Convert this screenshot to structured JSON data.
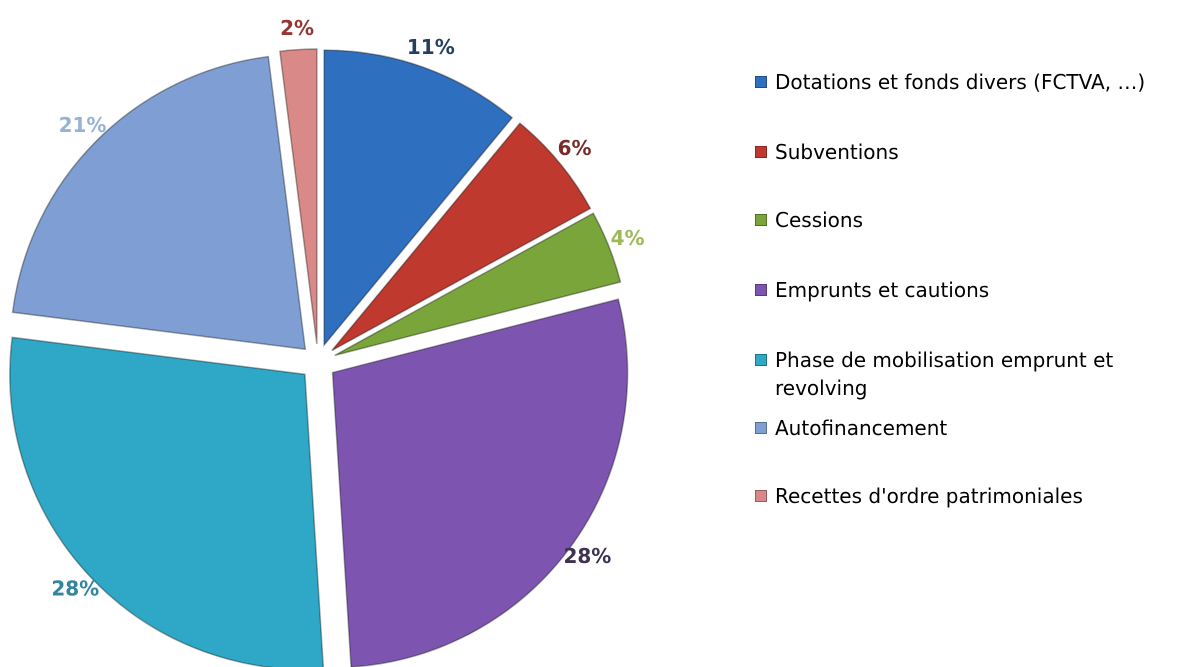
{
  "chart_data": {
    "type": "pie",
    "categories": [
      "Dotations et fonds divers (FCTVA, …)",
      "Subventions",
      "Cessions",
      "Emprunts et cautions",
      "Phase de mobilisation emprunt et revolving",
      "Autofinancement",
      "Recettes d'ordre patrimoniales"
    ],
    "values": [
      11,
      6,
      4,
      28,
      28,
      21,
      2
    ],
    "value_labels": [
      "11%",
      "6%",
      "4%",
      "28%",
      "28%",
      "21%",
      "2%"
    ],
    "colors": [
      "#2f6fbf",
      "#c0392f",
      "#7aa53a",
      "#7d55b0",
      "#2ea8c6",
      "#7f9fd4",
      "#d98a88"
    ],
    "label_colors": [
      "#243f60",
      "#772c2a",
      "#9bbb59",
      "#3f3151",
      "#31859c",
      "#95b3d7",
      "#943634"
    ],
    "legend": "right"
  }
}
